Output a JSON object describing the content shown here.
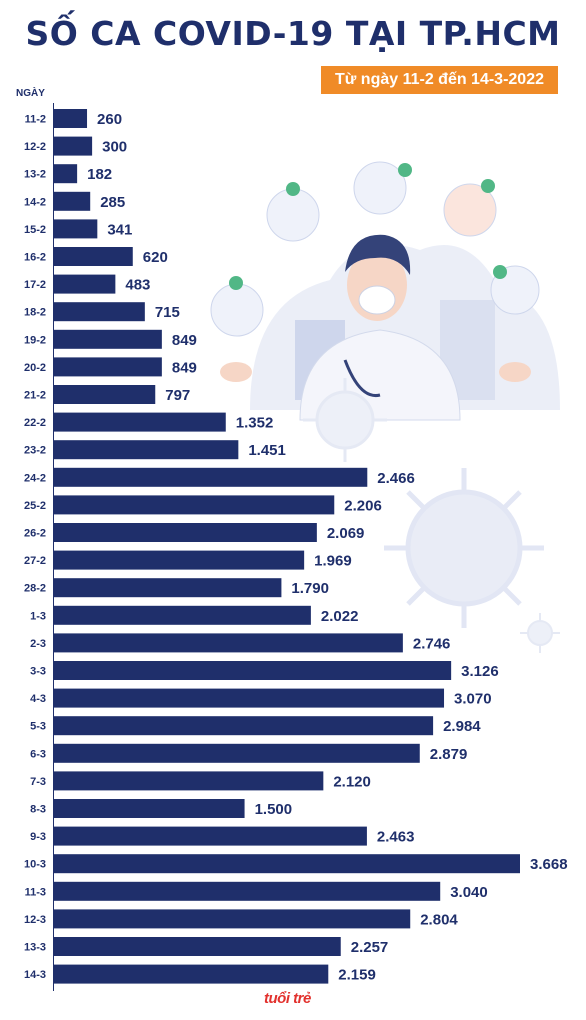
{
  "chart_data": {
    "type": "bar",
    "orientation": "horizontal",
    "title": "SỐ CA COVID-19 TẠI TP.HCM",
    "subtitle": "Từ ngày 11-2 đến 14-3-2022",
    "ylabel": "NGÀY",
    "xlim": [
      0,
      3668
    ],
    "grid": false,
    "legend": "none",
    "categories": [
      "11-2",
      "12-2",
      "13-2",
      "14-2",
      "15-2",
      "16-2",
      "17-2",
      "18-2",
      "19-2",
      "20-2",
      "21-2",
      "22-2",
      "23-2",
      "24-2",
      "25-2",
      "26-2",
      "27-2",
      "28-2",
      "1-3",
      "2-3",
      "3-3",
      "4-3",
      "5-3",
      "6-3",
      "7-3",
      "8-3",
      "9-3",
      "10-3",
      "11-3",
      "12-3",
      "13-3",
      "14-3"
    ],
    "values": [
      260,
      300,
      182,
      285,
      341,
      620,
      483,
      715,
      849,
      849,
      797,
      1352,
      1451,
      2466,
      2206,
      2069,
      1969,
      1790,
      2022,
      2746,
      3126,
      3070,
      2984,
      2879,
      2120,
      1500,
      2463,
      3668,
      3040,
      2804,
      2257,
      2159
    ],
    "value_labels": [
      "260",
      "300",
      "182",
      "285",
      "341",
      "620",
      "483",
      "715",
      "849",
      "849",
      "797",
      "1.352",
      "1.451",
      "2.466",
      "2.206",
      "2.069",
      "1.969",
      "1.790",
      "2.022",
      "2.746",
      "3.126",
      "3.070",
      "2.984",
      "2.879",
      "2.120",
      "1.500",
      "2.463",
      "3.668",
      "3.040",
      "2.804",
      "2.257",
      "2.159"
    ],
    "bar_color": "#1f2f6b"
  },
  "colors": {
    "title": "#1f2f6b",
    "badge": "#f08b27",
    "label": "#1f2f6b",
    "logo": "#e2312d",
    "illustration": "#e8ecf6"
  },
  "brand": {
    "logo_text": "tuổi trẻ"
  }
}
